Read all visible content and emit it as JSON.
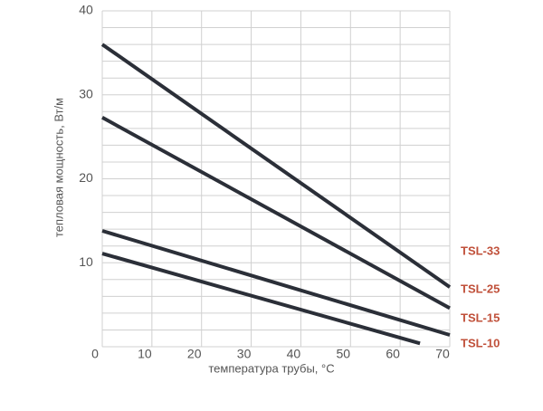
{
  "chart_data": {
    "type": "line",
    "xlabel": "температура трубы, °С",
    "ylabel": "тепловая мощность, Вт/м",
    "xlim": [
      0,
      70
    ],
    "xticks": [
      0,
      10,
      20,
      30,
      40,
      50,
      60,
      70
    ],
    "ylim": [
      0,
      40
    ],
    "yticks": [
      10,
      20,
      30,
      40
    ],
    "grid": true,
    "series": [
      {
        "name": "TSL-33",
        "color": "#2b2f38",
        "x": [
          0,
          70
        ],
        "values": [
          36,
          7.1
        ]
      },
      {
        "name": "TSL-25",
        "color": "#2b2f38",
        "x": [
          0,
          70
        ],
        "values": [
          27.3,
          4.6
        ]
      },
      {
        "name": "TSL-15",
        "color": "#2b2f38",
        "x": [
          0,
          70
        ],
        "values": [
          13.8,
          1.4
        ]
      },
      {
        "name": "TSL-10",
        "color": "#2b2f38",
        "x": [
          0,
          64
        ],
        "values": [
          11.1,
          0.4
        ]
      }
    ]
  }
}
